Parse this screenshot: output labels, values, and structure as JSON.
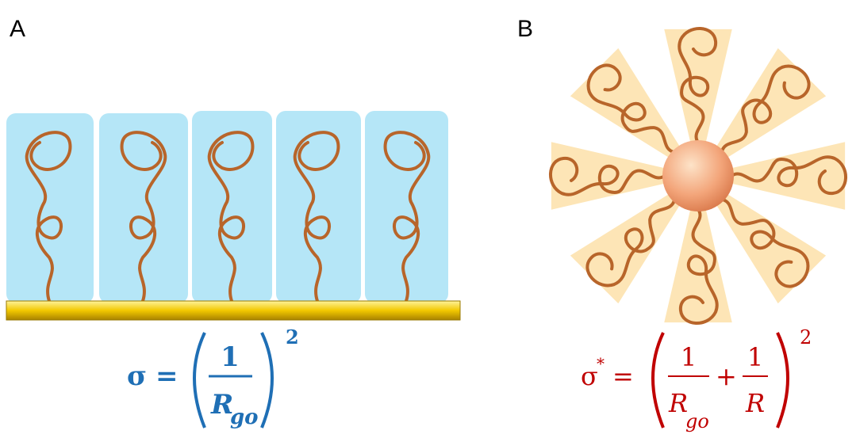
{
  "panels": [
    {
      "label": "A",
      "formula": {
        "symbol": "σ",
        "equals": "=",
        "numerator": "1",
        "denominator": "R",
        "subscript": "go",
        "exponent": "2"
      }
    },
    {
      "label": "B",
      "formula": {
        "symbol": "σ",
        "star": "*",
        "equals": "=",
        "numerator1": "1",
        "denominator1": "R",
        "subscript1": "go",
        "plus": "+",
        "numerator2": "1",
        "denominator2": "R",
        "exponent": "2"
      }
    }
  ]
}
